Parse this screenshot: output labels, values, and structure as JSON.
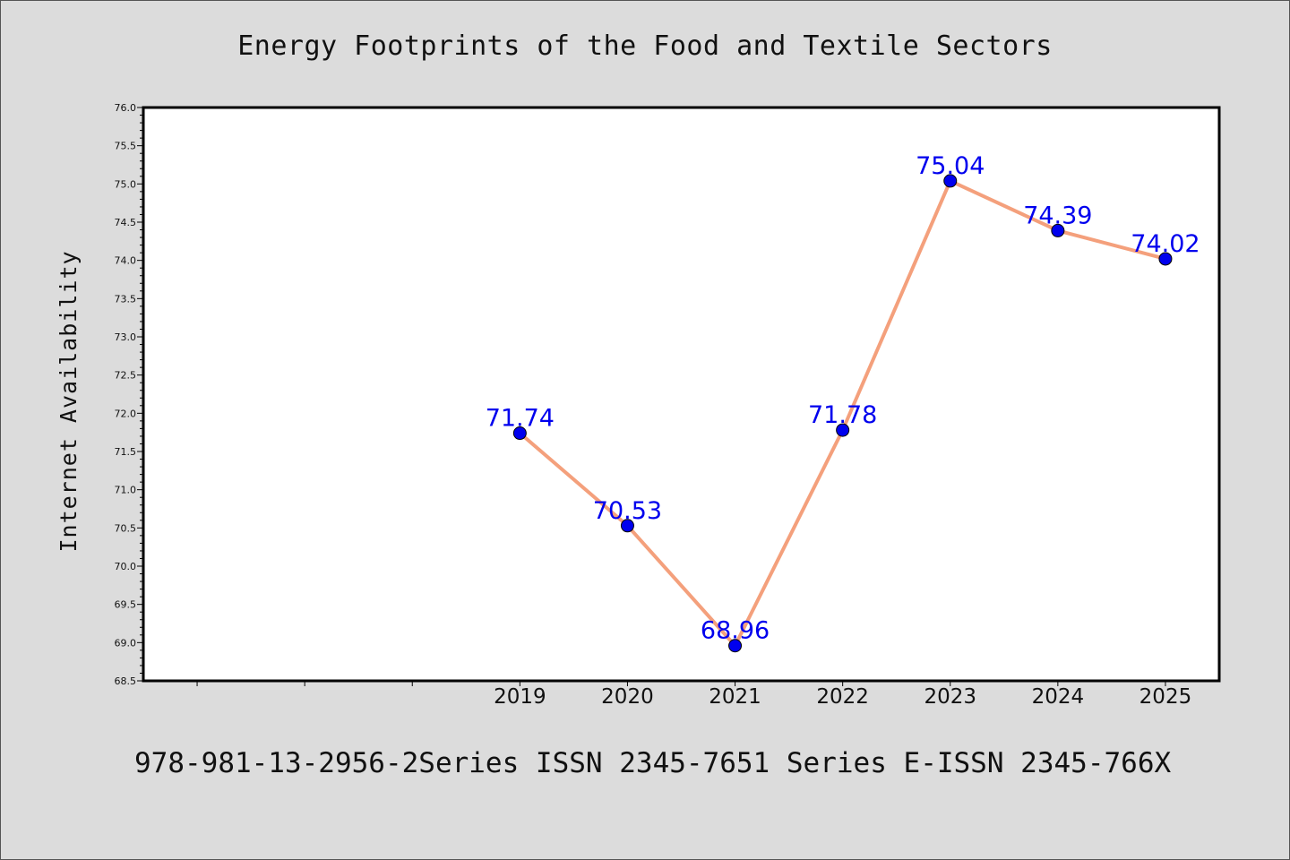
{
  "chart_data": {
    "type": "line",
    "title": "Energy Footprints of the Food and Textile Sectors",
    "xlabel": "",
    "ylabel": "Internet Availability",
    "x_display_range": [
      2015.5,
      2025.5
    ],
    "x": [
      2019,
      2020,
      2021,
      2022,
      2023,
      2024,
      2025
    ],
    "series": [
      {
        "values": [
          71.74,
          70.53,
          68.96,
          71.78,
          75.04,
          74.39,
          74.02
        ],
        "labels": [
          "71.74",
          "70.53",
          "68.96",
          "71.78",
          "75.04",
          "74.39",
          "74.02"
        ],
        "line_color": "#f4a07c",
        "marker_color": "#0000ee"
      }
    ],
    "ylim": [
      68.5,
      76.0
    ],
    "y_major_ticks": [
      "68.5",
      "69.0",
      "69.5",
      "70.0",
      "70.5",
      "71.0",
      "71.5",
      "72.0",
      "72.5",
      "73.0",
      "73.5",
      "74.0",
      "74.5",
      "75.0",
      "75.5",
      "76.0"
    ],
    "x_tick_labels": [
      "2019",
      "2020",
      "2021",
      "2022",
      "2023",
      "2024",
      "2025"
    ],
    "grid": false,
    "legend": "none"
  },
  "footer_text": "978-981-13-2956-2Series ISSN 2345-7651 Series E-ISSN 2345-766X"
}
